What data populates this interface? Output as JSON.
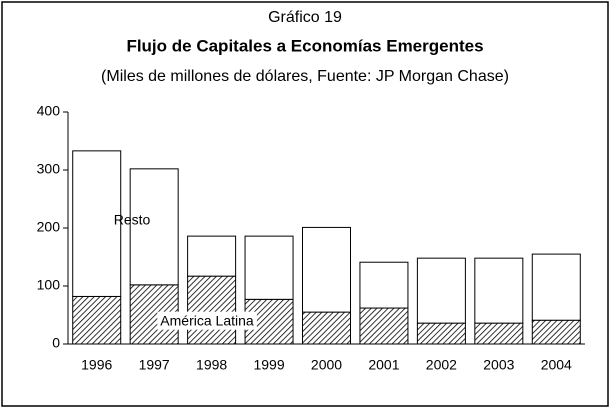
{
  "chart_data": {
    "type": "stacked_bar",
    "title": "Gráfico 19",
    "subtitle": "Flujo de Capitales a Economías Emergentes",
    "note": "(Miles de millones de dólares, Fuente: JP Morgan Chase)",
    "categories": [
      "1996",
      "1997",
      "1998",
      "1999",
      "2000",
      "2001",
      "2002",
      "2003",
      "2004"
    ],
    "series": [
      {
        "name": "América Latina",
        "color": "#000000",
        "pattern": "hatch",
        "values": [
          82,
          102,
          117,
          77,
          55,
          62,
          36,
          36,
          41
        ]
      },
      {
        "name": "Resto",
        "color": "#ffffff",
        "values": [
          251,
          200,
          69,
          109,
          146,
          79,
          112,
          112,
          114
        ]
      }
    ],
    "ylim": [
      0,
      400
    ],
    "yticks": [
      0,
      100,
      200,
      300,
      400
    ],
    "grid": false
  }
}
